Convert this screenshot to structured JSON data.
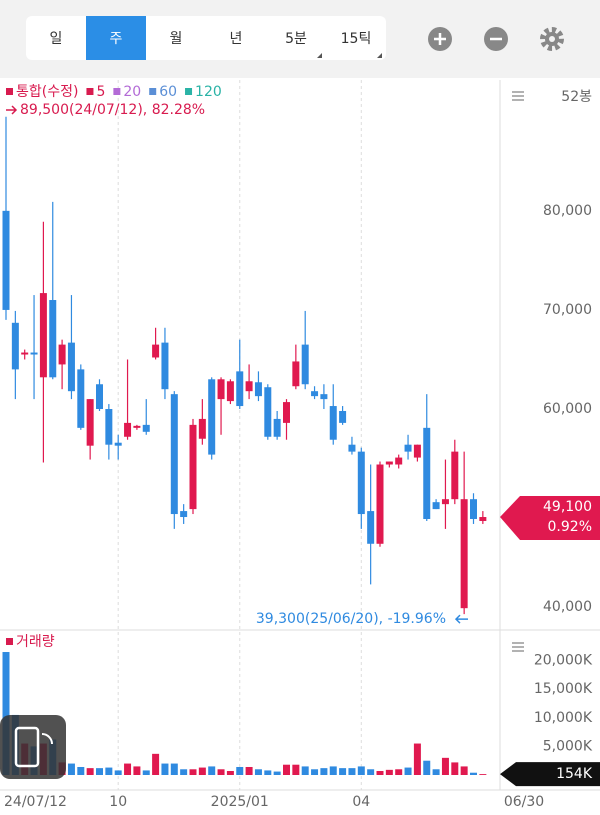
{
  "tabs": [
    "일",
    "주",
    "월",
    "년",
    "5분",
    "15틱"
  ],
  "selected_tab": 1,
  "chart_data": [
    {
      "type": "candlestick",
      "legend": [
        {
          "name": "통합(수정)",
          "color": "#d81b4f"
        },
        {
          "name": "5",
          "color": "#d81b4f"
        },
        {
          "name": "20",
          "color": "#b36bd6"
        },
        {
          "name": "60",
          "color": "#5b8fd6"
        },
        {
          "name": "120",
          "color": "#2ab3a6"
        }
      ],
      "period_label": "52봉",
      "up_color": "#e0194f",
      "down_color": "#2f8ae0",
      "open": [
        80000,
        68700,
        65500,
        65700,
        63200,
        71000,
        64500,
        66700,
        64000,
        56300,
        62500,
        60000,
        56600,
        57200,
        58100,
        58400,
        65200,
        66700,
        61500,
        49700,
        49900,
        57000,
        63000,
        61000,
        60800,
        63800,
        61800,
        62700,
        62200,
        59000,
        58600,
        62300,
        66500,
        61800,
        61500,
        60300,
        59800,
        56400,
        55700,
        49700,
        46400,
        54400,
        54400,
        56400,
        55100,
        58100,
        50600,
        50400,
        50900,
        39900,
        50900,
        48700
      ],
      "high": [
        89500,
        69900,
        66000,
        71500,
        78900,
        80900,
        67000,
        71500,
        64500,
        61000,
        63000,
        60500,
        57400,
        65000,
        58400,
        61000,
        68200,
        68200,
        61800,
        50400,
        59000,
        61000,
        63200,
        63200,
        63000,
        67000,
        64500,
        63800,
        62500,
        59800,
        61000,
        66500,
        69900,
        62300,
        62500,
        62500,
        60300,
        57200,
        56100,
        54400,
        54700,
        54700,
        55400,
        57400,
        56400,
        61500,
        50900,
        54900,
        56900,
        55700,
        51500,
        49700
      ],
      "low": [
        69000,
        61000,
        65000,
        61000,
        54600,
        63000,
        62000,
        61000,
        57900,
        54900,
        59800,
        54900,
        54900,
        56900,
        57900,
        57400,
        65000,
        61000,
        47900,
        48400,
        49400,
        56400,
        54900,
        57400,
        60500,
        60000,
        61000,
        60800,
        56900,
        56900,
        56900,
        62000,
        62000,
        61000,
        60000,
        56400,
        58400,
        55400,
        47900,
        42300,
        46100,
        54100,
        54000,
        54900,
        54700,
        48700,
        49900,
        47900,
        50400,
        39300,
        48400,
        48400
      ],
      "close": [
        70000,
        64000,
        65700,
        65500,
        71700,
        63200,
        66500,
        61800,
        58100,
        61000,
        60000,
        56400,
        56300,
        58600,
        58300,
        57700,
        66500,
        62000,
        49400,
        49100,
        58400,
        59000,
        55400,
        63000,
        62800,
        60300,
        62800,
        61300,
        57200,
        57200,
        60700,
        64800,
        62500,
        61300,
        61000,
        56900,
        58600,
        55700,
        49400,
        46400,
        54400,
        54700,
        55100,
        55700,
        56400,
        48900,
        49900,
        50900,
        55700,
        50900,
        48900,
        49100
      ],
      "ylim": [
        37900,
        92700
      ],
      "yticks": [
        {
          "value": 40000,
          "label": "40,000"
        },
        {
          "value": 60000,
          "label": "60,000"
        },
        {
          "value": 70000,
          "label": "70,000"
        },
        {
          "value": 80000,
          "label": "80,000"
        }
      ],
      "annotations": [
        {
          "text": "89,500(24/07/12), 82.28%",
          "color": "#d81b4f"
        },
        {
          "text": "39,300(25/06/20), -19.96%",
          "color": "#2f8ae0"
        }
      ],
      "last_value_label": "49,100",
      "last_change": "0.92%"
    },
    {
      "type": "bar",
      "legend": "거래량",
      "categories": [
        "24/07/12",
        null,
        null,
        null,
        null,
        null,
        null,
        null,
        null,
        null,
        null,
        null,
        "10",
        null,
        null,
        null,
        null,
        null,
        null,
        null,
        null,
        null,
        null,
        null,
        null,
        "2025/01",
        null,
        null,
        null,
        null,
        null,
        null,
        null,
        null,
        null,
        null,
        null,
        null,
        "04",
        null,
        null,
        null,
        null,
        null,
        null,
        null,
        null,
        null,
        null,
        null,
        null,
        "06/30"
      ],
      "values": [
        21500,
        10500,
        5500,
        5000,
        5500,
        6200,
        2200,
        2000,
        1400,
        1200,
        1200,
        1300,
        800,
        2000,
        1500,
        800,
        3700,
        2000,
        2000,
        1000,
        1000,
        1300,
        1500,
        1000,
        700,
        1400,
        1400,
        1000,
        800,
        600,
        1800,
        1800,
        1500,
        1000,
        1200,
        1500,
        1200,
        1200,
        1500,
        1000,
        700,
        900,
        1000,
        1300,
        5500,
        2500,
        1000,
        3000,
        2200,
        1500,
        400,
        154
      ],
      "ylim": [
        0,
        25000
      ],
      "yticks": [
        {
          "value": 5000,
          "label": "5,000K"
        },
        {
          "value": 10000,
          "label": "10,000K"
        },
        {
          "value": 15000,
          "label": "15,000K"
        },
        {
          "value": 20000,
          "label": "20,000K"
        }
      ],
      "last_value_label": "154K"
    }
  ]
}
